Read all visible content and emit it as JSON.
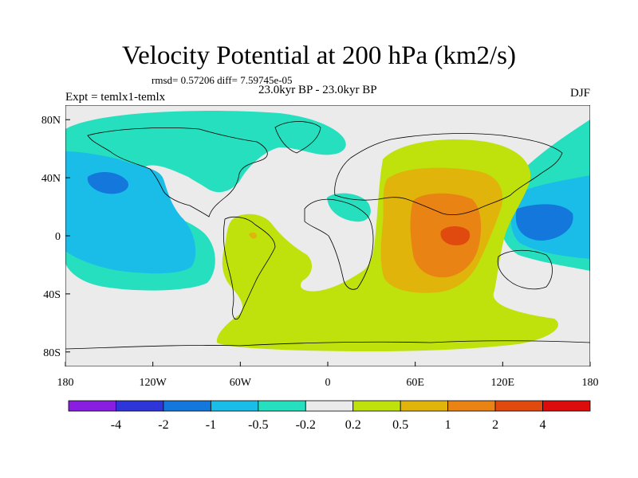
{
  "header": {
    "title": "Velocity Potential at 200 hPa (km2/s)",
    "stats": "rmsd= 0.57206 diff= 7.59745e-05",
    "period": "23.0kyr BP - 23.0kyr BP",
    "experiment": "Expt = temlx1-temlx",
    "season": "DJF"
  },
  "map": {
    "projection": "cylindrical-equidistant",
    "lon_range": [
      -180,
      180
    ],
    "lat_range": [
      -90,
      90
    ],
    "lon_ticks": [
      "180",
      "120W",
      "60W",
      "0",
      "60E",
      "120E",
      "180"
    ],
    "lat_ticks": [
      "80N",
      "40N",
      "0",
      "40S",
      "80S"
    ],
    "fill_outside_range": "#ebebeb",
    "coastline_color": "#000000"
  },
  "colorbar": {
    "colors": [
      "#8a1ee0",
      "#2e36d9",
      "#1477dc",
      "#19bde7",
      "#26dfbe",
      "#ebebeb",
      "#bfe10c",
      "#e0b40a",
      "#e98313",
      "#e04a0f",
      "#dd0c0c"
    ],
    "labels": [
      "-4",
      "-2",
      "-1",
      "-0.5",
      "-0.2",
      "0.2",
      "0.5",
      "1",
      "2",
      "4"
    ]
  }
}
